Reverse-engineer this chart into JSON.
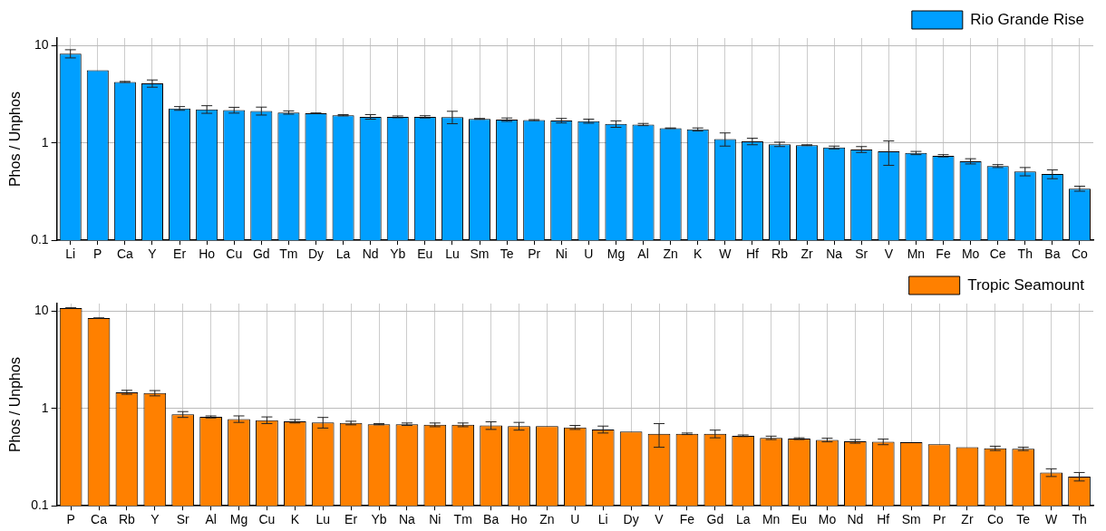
{
  "chart_data": [
    {
      "type": "bar",
      "ylabel": "Phos / Unphos",
      "log": "y",
      "grid": true,
      "legend": "top right",
      "ylim": [
        0.1,
        12
      ],
      "yticks": [
        0.1,
        1,
        10
      ],
      "categories": [
        "Li",
        "P",
        "Ca",
        "Y",
        "Er",
        "Ho",
        "Cu",
        "Gd",
        "Tm",
        "Dy",
        "La",
        "Nd",
        "Yb",
        "Eu",
        "Lu",
        "Sm",
        "Te",
        "Pr",
        "Ni",
        "U",
        "Mg",
        "Al",
        "Zn",
        "K",
        "W",
        "Hf",
        "Rb",
        "Zr",
        "Na",
        "Sr",
        "V",
        "Mn",
        "Fe",
        "Mo",
        "Ce",
        "Th",
        "Ba",
        "Co"
      ],
      "series": [
        {
          "name": "Rio Grande Rise",
          "color": "#009fff",
          "values": [
            8.3,
            5.6,
            4.25,
            4.1,
            2.27,
            2.22,
            2.18,
            2.14,
            2.06,
            2.02,
            1.93,
            1.86,
            1.86,
            1.86,
            1.85,
            1.77,
            1.74,
            1.72,
            1.7,
            1.68,
            1.57,
            1.55,
            1.42,
            1.38,
            1.1,
            1.04,
            0.97,
            0.95,
            0.9,
            0.86,
            0.82,
            0.79,
            0.74,
            0.65,
            0.58,
            0.51,
            0.48,
            0.34
          ],
          "errors": [
            0.8,
            null,
            0.05,
            0.35,
            0.1,
            0.2,
            0.15,
            0.2,
            0.08,
            0.02,
            0.03,
            0.1,
            0.04,
            0.05,
            0.27,
            0.02,
            0.07,
            0.02,
            0.09,
            0.08,
            0.12,
            0.04,
            0.01,
            0.05,
            0.17,
            0.08,
            0.05,
            0.01,
            0.03,
            0.06,
            0.23,
            0.03,
            0.02,
            0.04,
            0.02,
            0.05,
            0.05,
            0.02
          ]
        }
      ]
    },
    {
      "type": "bar",
      "ylabel": "Phos / Unphos",
      "log": "y",
      "grid": true,
      "legend": "top right",
      "ylim": [
        0.1,
        12
      ],
      "yticks": [
        0.1,
        1,
        10
      ],
      "categories": [
        "P",
        "Ca",
        "Rb",
        "Y",
        "Sr",
        "Al",
        "Mg",
        "Cu",
        "K",
        "Lu",
        "Er",
        "Yb",
        "Na",
        "Ni",
        "Tm",
        "Ba",
        "Ho",
        "Zn",
        "U",
        "Li",
        "Dy",
        "V",
        "Fe",
        "Gd",
        "La",
        "Mn",
        "Eu",
        "Mo",
        "Nd",
        "Hf",
        "Sm",
        "Pr",
        "Zr",
        "Co",
        "Te",
        "W",
        "Th"
      ],
      "series": [
        {
          "name": "Tropic Seamount",
          "color": "#ff8000",
          "values": [
            10.8,
            8.5,
            1.47,
            1.44,
            0.87,
            0.82,
            0.78,
            0.76,
            0.74,
            0.72,
            0.71,
            0.69,
            0.69,
            0.68,
            0.68,
            0.67,
            0.66,
            0.66,
            0.64,
            0.61,
            0.58,
            0.55,
            0.55,
            0.55,
            0.525,
            0.5,
            0.49,
            0.475,
            0.46,
            0.455,
            0.45,
            0.43,
            0.4,
            0.39,
            0.385,
            0.22,
            0.2
          ],
          "errors": [
            0.05,
            0.05,
            0.07,
            0.09,
            0.06,
            0.02,
            0.06,
            0.06,
            0.03,
            0.09,
            0.03,
            0.01,
            0.02,
            0.03,
            0.03,
            0.06,
            0.06,
            null,
            0.03,
            0.05,
            null,
            0.15,
            0.01,
            0.05,
            0.01,
            0.02,
            0.01,
            0.02,
            0.02,
            0.03,
            null,
            null,
            null,
            0.02,
            0.015,
            0.02,
            0.02
          ]
        }
      ]
    }
  ]
}
